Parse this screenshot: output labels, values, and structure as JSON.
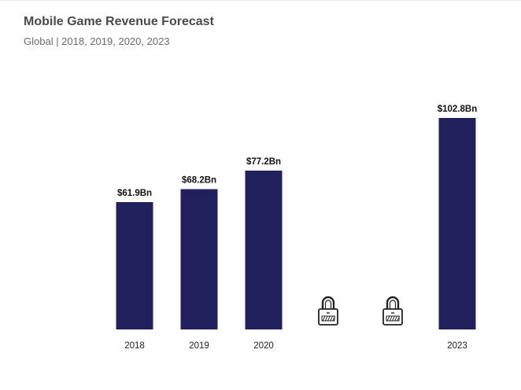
{
  "header": {
    "title": "Mobile Game Revenue Forecast",
    "subtitle": "Global | 2018, 2019, 2020, 2023"
  },
  "colors": {
    "bar": "#23215d",
    "lock_stroke": "#222222"
  },
  "chart_data": {
    "type": "bar",
    "title": "Mobile Game Revenue Forecast",
    "subtitle": "Global | 2018, 2019, 2020, 2023",
    "categories": [
      "2018",
      "2019",
      "2020",
      "",
      "",
      "2023"
    ],
    "values": [
      61.9,
      68.2,
      77.2,
      null,
      null,
      102.8
    ],
    "data_labels": [
      "$61.9Bn",
      "$68.2Bn",
      "$77.2Bn",
      "",
      "",
      "$102.8Bn"
    ],
    "locked": [
      false,
      false,
      false,
      true,
      true,
      false
    ],
    "locked_icon": "padlock-icon",
    "xlabel": "",
    "ylabel": "",
    "ylim": [
      0,
      102.8
    ],
    "grid": false,
    "legend": "none"
  }
}
